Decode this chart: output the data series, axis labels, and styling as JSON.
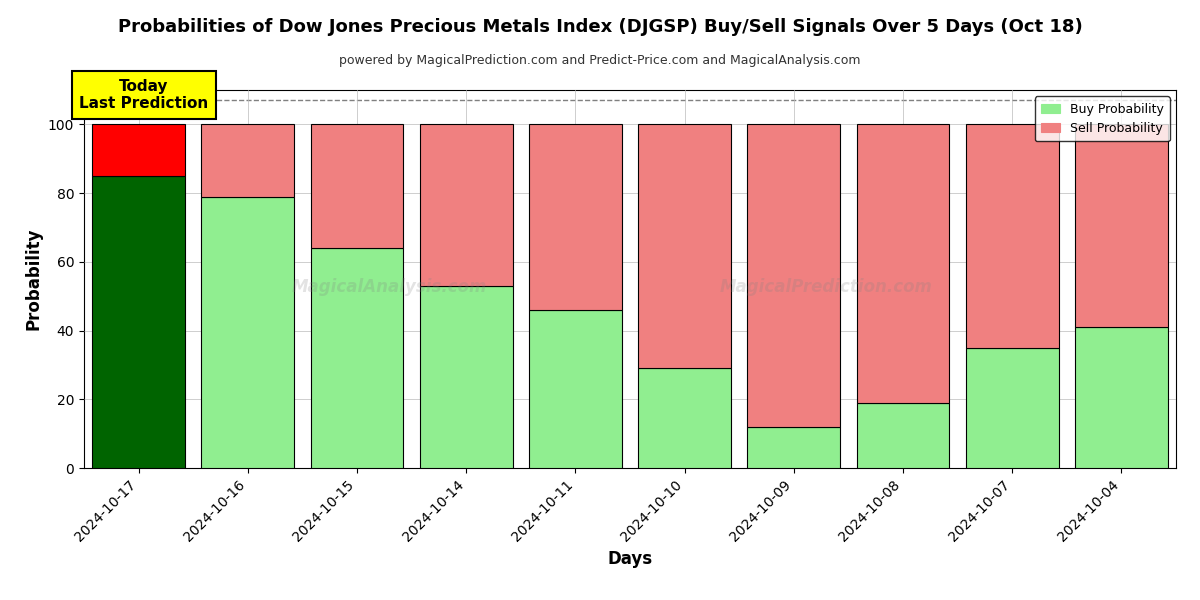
{
  "title": "Probabilities of Dow Jones Precious Metals Index (DJGSP) Buy/Sell Signals Over 5 Days (Oct 18)",
  "subtitle": "powered by MagicalPrediction.com and Predict-Price.com and MagicalAnalysis.com",
  "xlabel": "Days",
  "ylabel": "Probability",
  "watermark_left": "MagicalAnalysis.com",
  "watermark_right": "MagicalPrediction.com",
  "dates": [
    "2024-10-17",
    "2024-10-16",
    "2024-10-15",
    "2024-10-14",
    "2024-10-11",
    "2024-10-10",
    "2024-10-09",
    "2024-10-08",
    "2024-10-07",
    "2024-10-04"
  ],
  "buy_probs": [
    85,
    79,
    64,
    53,
    46,
    29,
    12,
    19,
    35,
    41
  ],
  "sell_probs": [
    15,
    21,
    36,
    47,
    54,
    71,
    88,
    81,
    65,
    59
  ],
  "today_buy_color": "#006400",
  "today_sell_color": "#ff0000",
  "buy_color": "#90EE90",
  "sell_color": "#F08080",
  "today_label_line1": "Today",
  "today_label_line2": "Last Prediction",
  "today_label_bg": "#ffff00",
  "legend_buy": "Buy Probability",
  "legend_sell": "Sell Probability",
  "ylim": [
    0,
    110
  ],
  "yticks": [
    0,
    20,
    40,
    60,
    80,
    100
  ],
  "dashed_line_y": 107,
  "background_color": "#ffffff",
  "grid_color": "#bbbbbb",
  "bar_width": 0.85
}
